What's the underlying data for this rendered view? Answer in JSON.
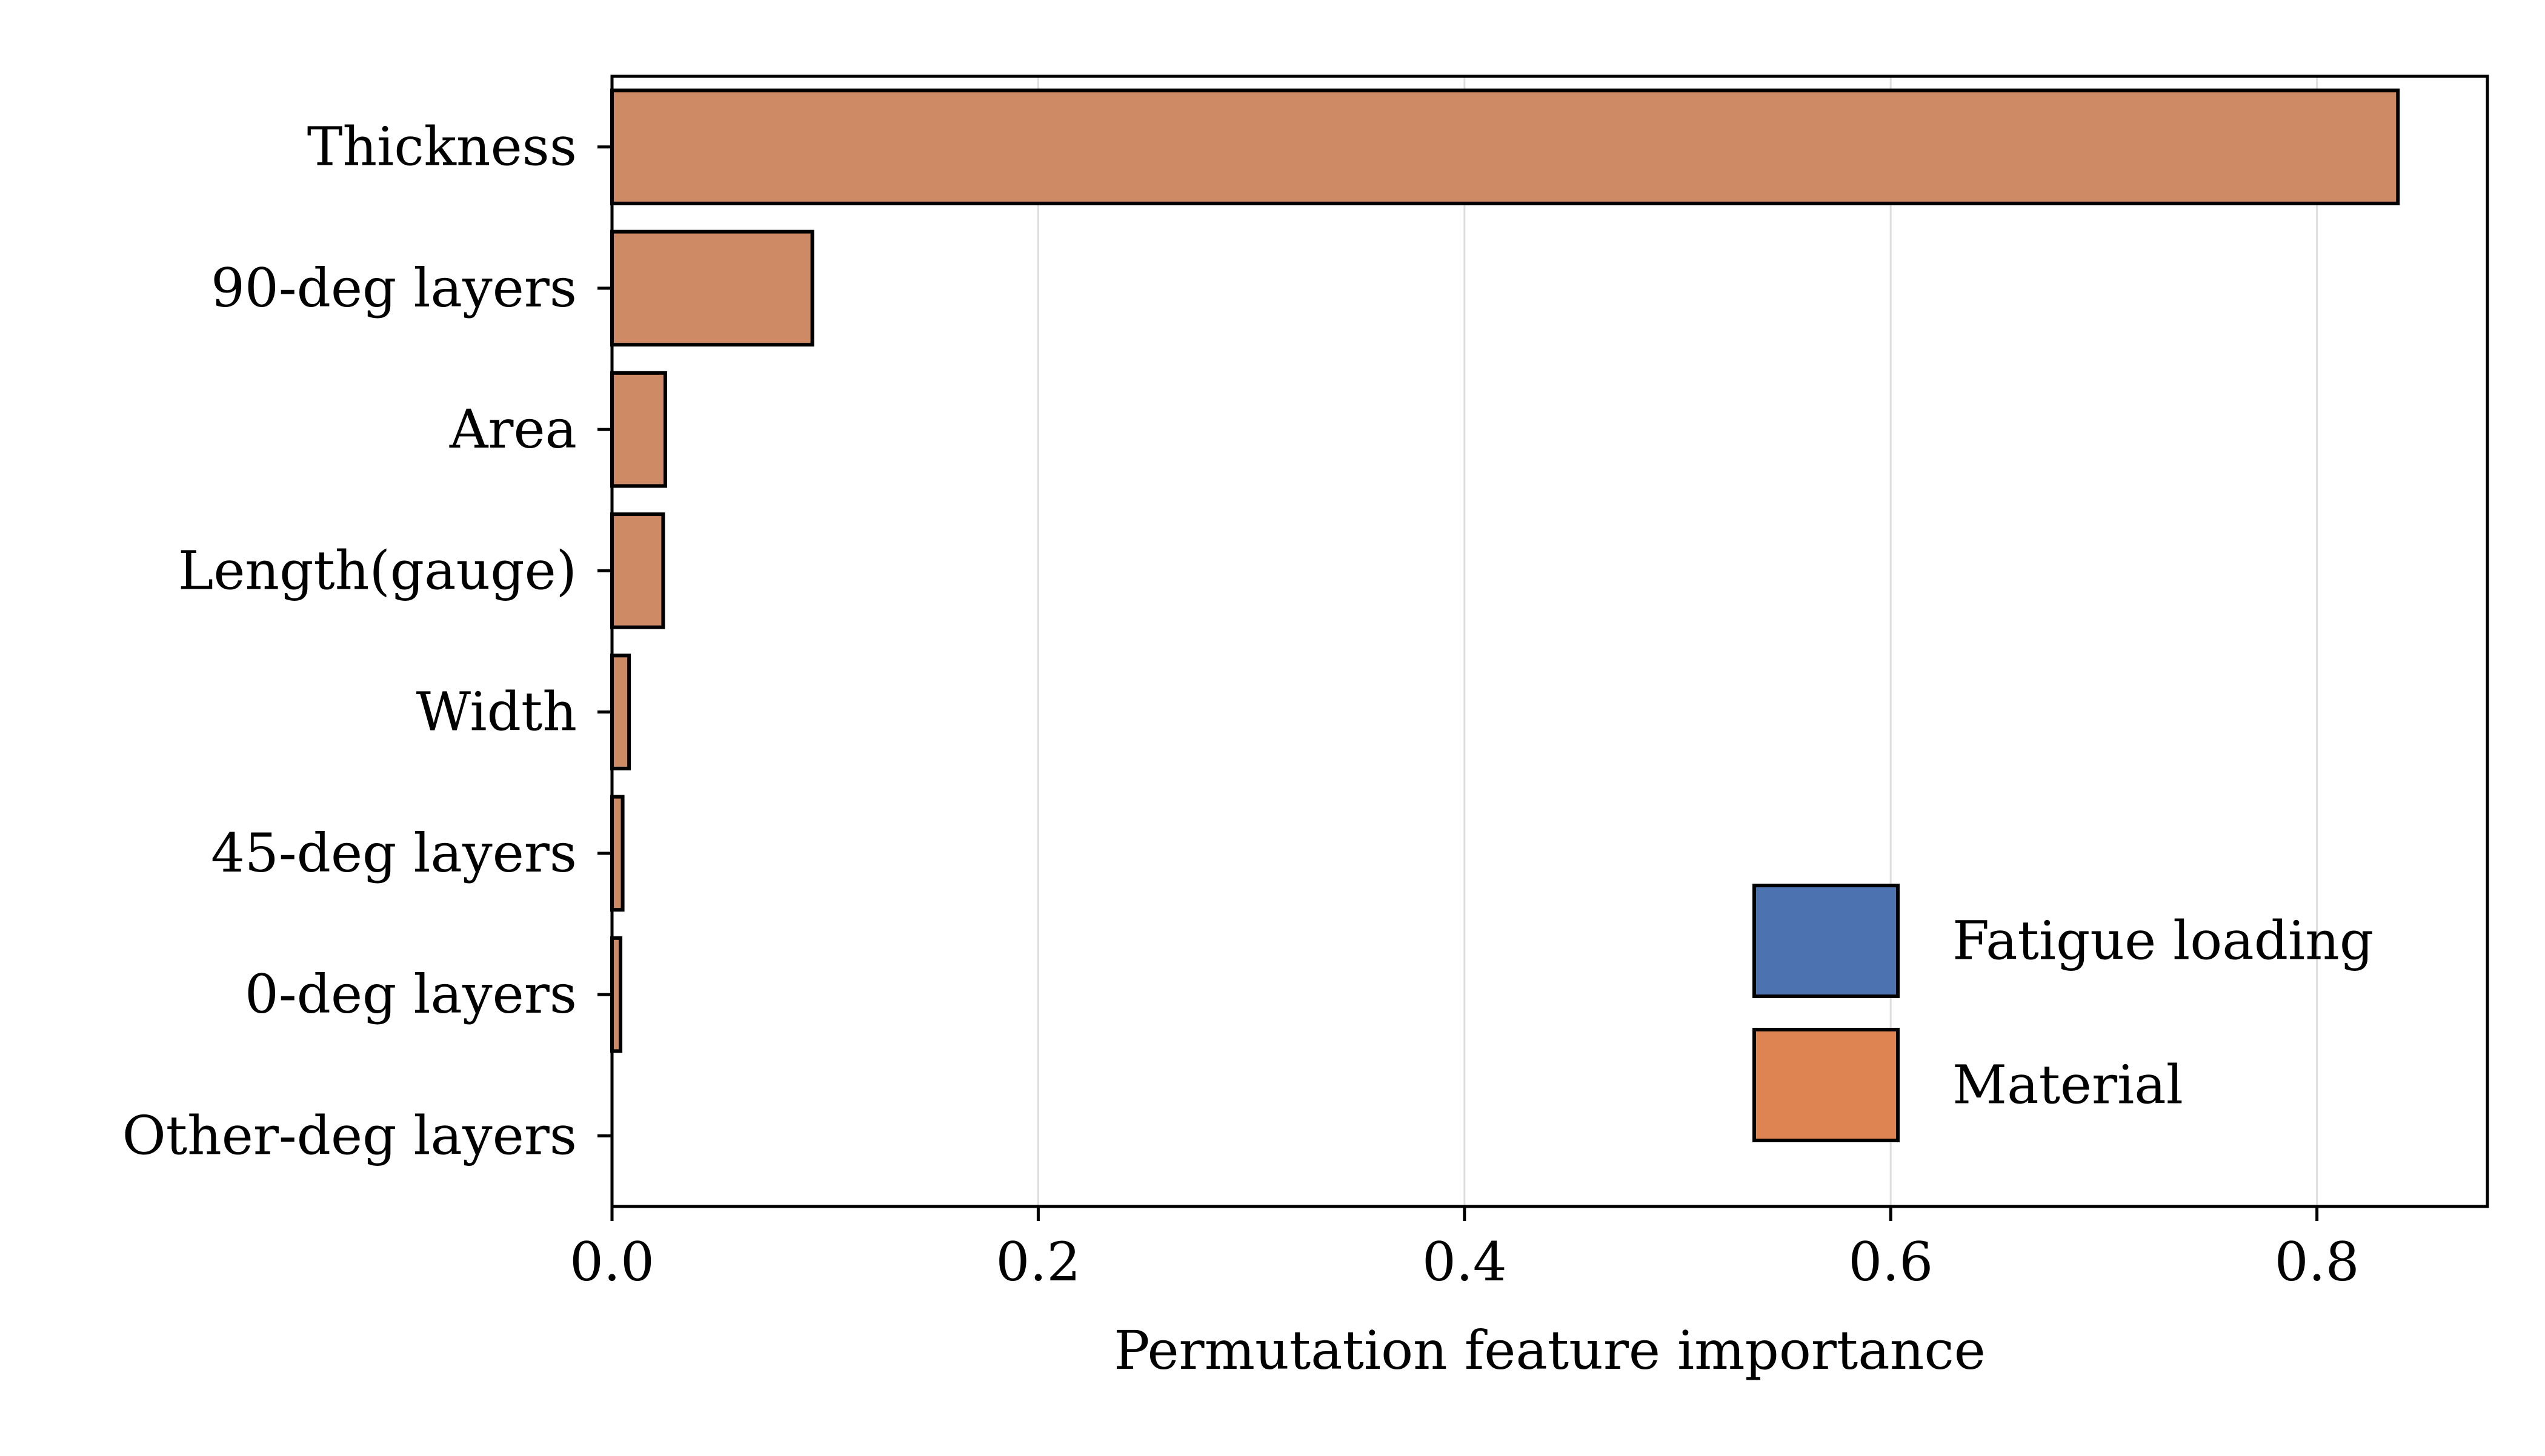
{
  "chart_data": {
    "type": "bar",
    "orientation": "horizontal",
    "title": "",
    "xlabel": "Permutation feature importance",
    "ylabel": "",
    "xlim": [
      0,
      0.88
    ],
    "grid": "vertical",
    "xticks": [
      {
        "value": 0.0,
        "label": "0.0"
      },
      {
        "value": 0.2,
        "label": "0.2"
      },
      {
        "value": 0.4,
        "label": "0.4"
      },
      {
        "value": 0.6,
        "label": "0.6"
      },
      {
        "value": 0.8,
        "label": "0.8"
      }
    ],
    "categories": [
      "Thickness",
      "90-deg layers",
      "Area",
      "Length(gauge)",
      "Width",
      "45-deg layers",
      "0-deg layers",
      "Other-deg layers"
    ],
    "values": [
      0.838,
      0.094,
      0.025,
      0.024,
      0.008,
      0.005,
      0.004,
      0.0
    ],
    "groups": [
      "Material",
      "Material",
      "Material",
      "Material",
      "Material",
      "Material",
      "Material",
      "Material"
    ],
    "legend": {
      "position": "lower-right",
      "entries": [
        {
          "label": "Fatigue loading",
          "color": "#4c72b0"
        },
        {
          "label": "Material",
          "color": "#dd8452"
        }
      ]
    },
    "bar_color": "#cd8a65",
    "edge_color": "#000000",
    "grid_color": "#dddddd"
  }
}
